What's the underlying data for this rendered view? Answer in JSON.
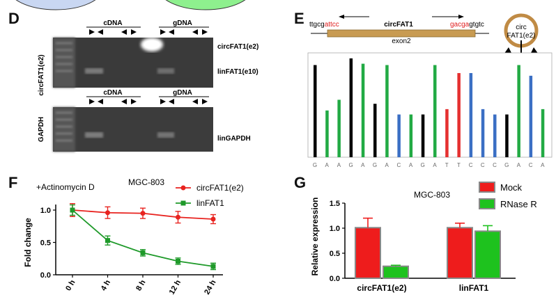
{
  "panels": {
    "d": {
      "letter": "D",
      "side_label_top": "circFAT1(e2)",
      "side_label_bottom": "GAPDH",
      "top_header_left": "cDNA",
      "top_header_right": "gDNA",
      "bottom_header_left": "cDNA",
      "bottom_header_right": "gDNA",
      "band_labels": [
        "circFAT1(e2)",
        "linFAT1(e10)",
        "linGAPDH"
      ]
    },
    "e": {
      "letter": "E",
      "seq_left_black": "ttgcg",
      "seq_left_red": "attcc",
      "seq_mid": "circFAT1",
      "seq_right_red": "gacga",
      "seq_right_black": "gtgtc",
      "exon_label": "exon2",
      "circle_label_line1": "circ",
      "circle_label_line2": "FAT1(e2)",
      "bases": [
        "G",
        "A",
        "A",
        "G",
        "A",
        "G",
        "A",
        "C",
        "A",
        "G",
        "A",
        "T",
        "T",
        "C",
        "C",
        "C",
        "G",
        "A",
        "C",
        "A"
      ],
      "colors": {
        "G": "#000000",
        "A": "#22aa44",
        "C": "#3b6fc4",
        "T": "#e53030"
      }
    },
    "f": {
      "letter": "F",
      "note": "+Actinomycin D",
      "cell_line": "MGC-803"
    },
    "g": {
      "letter": "G",
      "cell_line": "MGC-803"
    }
  },
  "chart_data": [
    {
      "type": "line",
      "panel": "F",
      "title": "MGC-803",
      "xlabel": "",
      "ylabel": "Fold change",
      "categories": [
        "0 h",
        "4 h",
        "8 h",
        "12 h",
        "24 h"
      ],
      "ylim": [
        0,
        1.0
      ],
      "yticks": [
        "0.0",
        "0.5",
        "1.0"
      ],
      "series": [
        {
          "name": "circFAT1(e2)",
          "color": "#e8231f",
          "values": [
            1.0,
            0.96,
            0.95,
            0.89,
            0.86
          ],
          "errors": [
            0.1,
            0.09,
            0.08,
            0.09,
            0.07
          ]
        },
        {
          "name": "linFAT1",
          "color": "#1f9a2a",
          "values": [
            1.0,
            0.53,
            0.34,
            0.21,
            0.13
          ],
          "errors": [
            0.08,
            0.07,
            0.05,
            0.05,
            0.05
          ]
        }
      ]
    },
    {
      "type": "bar",
      "panel": "G",
      "title": "MGC-803",
      "xlabel": "",
      "ylabel": "Relative expression",
      "categories": [
        "circFAT1(e2)",
        "linFAT1"
      ],
      "ylim": [
        0,
        1.5
      ],
      "yticks": [
        "0.0",
        "0.5",
        "1.0",
        "1.5"
      ],
      "series": [
        {
          "name": "Mock",
          "color": "#ee1c1c",
          "values": [
            1.01,
            1.01
          ],
          "errors": [
            0.19,
            0.09
          ]
        },
        {
          "name": "RNase R",
          "color": "#1ec21e",
          "values": [
            0.24,
            0.94
          ],
          "errors": [
            0.02,
            0.11
          ]
        }
      ]
    }
  ]
}
